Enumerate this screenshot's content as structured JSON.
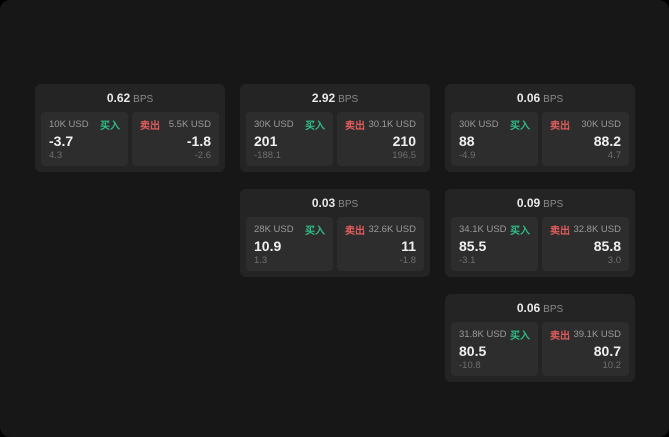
{
  "labels": {
    "bps": "BPS",
    "buy": "买入",
    "sell": "卖出"
  },
  "colors": {
    "buy_green": "#2ebd85",
    "sell_red": "#e05b5b",
    "page_background": "#171717",
    "card_background": "#242424",
    "panel_background": "#2d2d2d"
  },
  "cards": [
    {
      "bps": "0.62",
      "buy_size": "10K USD",
      "buy_price": "-3.7",
      "buy_sub": "4.3",
      "sell_size": "5.5K USD",
      "sell_price": "-1.8",
      "sell_sub": "-2.6"
    },
    {
      "bps": "2.92",
      "buy_size": "30K USD",
      "buy_price": "201",
      "buy_sub": "-188.1",
      "sell_size": "30.1K USD",
      "sell_price": "210",
      "sell_sub": "196.5"
    },
    {
      "bps": "0.06",
      "buy_size": "30K USD",
      "buy_price": "88",
      "buy_sub": "-4.9",
      "sell_size": "30K USD",
      "sell_price": "88.2",
      "sell_sub": "4.7"
    },
    {
      "bps": "0.03",
      "buy_size": "28K USD",
      "buy_price": "10.9",
      "buy_sub": "1.3",
      "sell_size": "32.6K USD",
      "sell_price": "11",
      "sell_sub": "-1.8"
    },
    {
      "bps": "0.09",
      "buy_size": "34.1K USD",
      "buy_price": "85.5",
      "buy_sub": "-3.1",
      "sell_size": "32.8K USD",
      "sell_price": "85.8",
      "sell_sub": "3.0"
    },
    {
      "bps": "0.06",
      "buy_size": "31.8K USD",
      "buy_price": "80.5",
      "buy_sub": "-10.8",
      "sell_size": "39.1K USD",
      "sell_price": "80.7",
      "sell_sub": "10.2"
    }
  ]
}
